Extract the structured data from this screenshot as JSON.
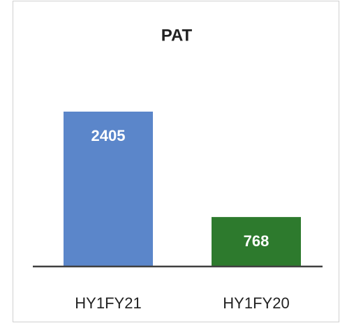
{
  "chart_data": {
    "type": "bar",
    "title": "PAT",
    "categories": [
      "HY1FY21",
      "HY1FY20"
    ],
    "values": [
      2405,
      768
    ],
    "colors": [
      "#5b86ca",
      "#2d7a2d"
    ]
  }
}
